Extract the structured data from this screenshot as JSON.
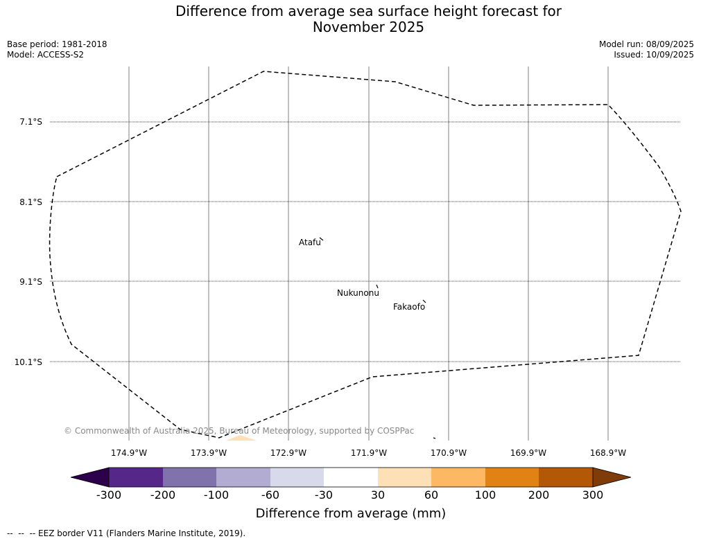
{
  "title": {
    "line1": "Difference from average sea surface height forecast for",
    "line2": "November 2025"
  },
  "meta": {
    "base_period": "Base period: 1981-2018",
    "model": "Model: ACCESS-S2",
    "model_run": "Model run: 08/09/2025",
    "issued": "Issued: 10/09/2025"
  },
  "map": {
    "lat_labels": [
      "7.1°S",
      "8.1°S",
      "9.1°S",
      "10.1°S"
    ],
    "lon_labels": [
      "174.9°W",
      "173.9°W",
      "172.9°W",
      "171.9°W",
      "170.9°W",
      "169.9°W",
      "168.9°W"
    ],
    "places": [
      {
        "name": "Atafu"
      },
      {
        "name": "Nukunonu"
      },
      {
        "name": "Fakaofo"
      }
    ],
    "copyright": "© Commonwealth of Australia 2025, Bureau of Meteorology, supported by COSPPac",
    "eez_color": "#000000"
  },
  "colorbar": {
    "label": "Difference from average (mm)",
    "ticks": [
      "-300",
      "-200",
      "-100",
      "-60",
      "-30",
      "30",
      "60",
      "100",
      "200",
      "300"
    ],
    "under_color": "#2d004b",
    "over_color": "#7f3b08",
    "colors": [
      "#542788",
      "#8073ac",
      "#b2abd2",
      "#d8daeb",
      "#ffffff",
      "#fee0b6",
      "#fdb863",
      "#e08214",
      "#b35806"
    ]
  },
  "legend_note": "--  --  -- EEZ border V11 (Flanders Marine Institute, 2019)."
}
